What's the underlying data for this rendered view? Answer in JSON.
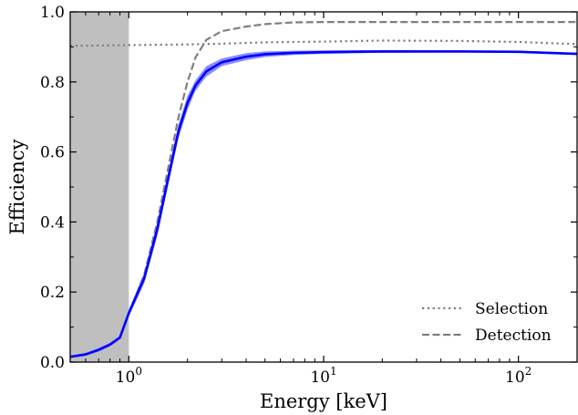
{
  "chart_data": {
    "type": "line",
    "xlabel": "Energy [keV]",
    "ylabel": "Efficiency",
    "xscale": "log",
    "xlim": [
      0.5,
      200
    ],
    "ylim": [
      0.0,
      1.0
    ],
    "grid": false,
    "legend_position": "bottom-right",
    "shaded_region": {
      "x_from": 0.5,
      "x_to": 1.0,
      "color": "#bfbfbf"
    },
    "x_ticks": [
      {
        "value": 1,
        "base": "10",
        "exp": "0"
      },
      {
        "value": 10,
        "base": "10",
        "exp": "1"
      },
      {
        "value": 100,
        "base": "10",
        "exp": "2"
      }
    ],
    "y_ticks": [
      {
        "value": 0.0,
        "label": "0.0"
      },
      {
        "value": 0.2,
        "label": "0.2"
      },
      {
        "value": 0.4,
        "label": "0.4"
      },
      {
        "value": 0.6,
        "label": "0.6"
      },
      {
        "value": 0.8,
        "label": "0.8"
      },
      {
        "value": 1.0,
        "label": "1.0"
      }
    ],
    "series": [
      {
        "name": "Selection",
        "style": "dotted",
        "color": "#7f7f7f",
        "x": [
          0.5,
          1,
          2,
          3,
          5,
          10,
          20,
          50,
          100,
          200
        ],
        "y": [
          0.903,
          0.905,
          0.907,
          0.909,
          0.913,
          0.915,
          0.918,
          0.917,
          0.914,
          0.908
        ]
      },
      {
        "name": "Detection",
        "style": "dashed",
        "color": "#7f7f7f",
        "x": [
          1.0,
          1.2,
          1.4,
          1.6,
          1.8,
          2.0,
          2.2,
          2.5,
          3,
          4,
          5,
          7,
          10,
          20,
          50,
          100,
          200
        ],
        "y": [
          0.14,
          0.25,
          0.4,
          0.56,
          0.7,
          0.8,
          0.87,
          0.92,
          0.945,
          0.958,
          0.965,
          0.97,
          0.971,
          0.971,
          0.971,
          0.971,
          0.971
        ]
      },
      {
        "name": "",
        "style": "solid",
        "color": "#0000ff",
        "band_color": "#7777ff",
        "x": [
          0.5,
          0.6,
          0.7,
          0.8,
          0.9,
          1.0,
          1.2,
          1.4,
          1.6,
          1.8,
          2.0,
          2.2,
          2.5,
          3,
          4,
          5,
          7,
          10,
          20,
          50,
          100,
          200
        ],
        "y": [
          0.015,
          0.022,
          0.035,
          0.05,
          0.07,
          0.14,
          0.24,
          0.38,
          0.53,
          0.66,
          0.74,
          0.79,
          0.83,
          0.856,
          0.872,
          0.879,
          0.883,
          0.885,
          0.887,
          0.887,
          0.886,
          0.88
        ],
        "band_lower": [
          0.012,
          0.018,
          0.03,
          0.045,
          0.065,
          0.13,
          0.225,
          0.36,
          0.51,
          0.64,
          0.72,
          0.775,
          0.815,
          0.845,
          0.862,
          0.871,
          0.877,
          0.88,
          0.883,
          0.884,
          0.883,
          0.877
        ],
        "band_upper": [
          0.018,
          0.026,
          0.04,
          0.055,
          0.075,
          0.15,
          0.255,
          0.4,
          0.55,
          0.68,
          0.76,
          0.805,
          0.845,
          0.867,
          0.882,
          0.887,
          0.889,
          0.89,
          0.891,
          0.89,
          0.889,
          0.883
        ]
      }
    ]
  }
}
